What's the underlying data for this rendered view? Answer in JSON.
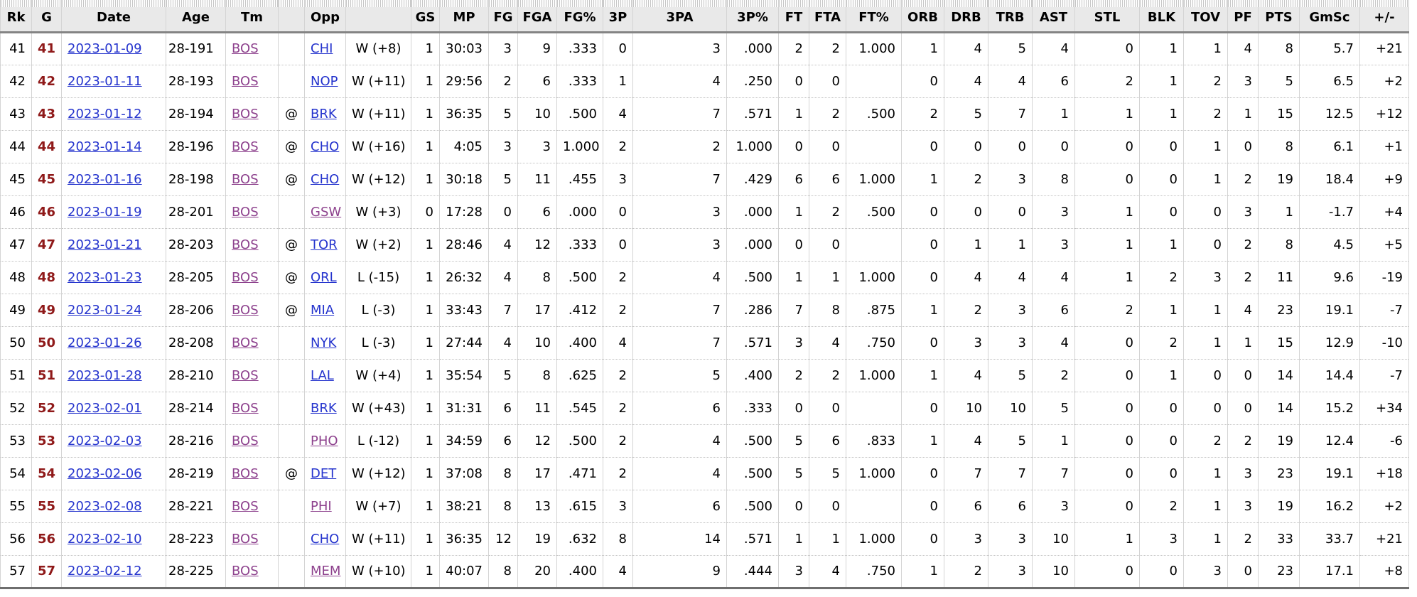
{
  "table": {
    "columns": [
      {
        "key": "rk",
        "label": "Rk"
      },
      {
        "key": "g",
        "label": "G"
      },
      {
        "key": "date",
        "label": "Date"
      },
      {
        "key": "age",
        "label": "Age"
      },
      {
        "key": "tm",
        "label": "Tm"
      },
      {
        "key": "loc",
        "label": ""
      },
      {
        "key": "opp",
        "label": "Opp"
      },
      {
        "key": "result",
        "label": ""
      },
      {
        "key": "gs",
        "label": "GS"
      },
      {
        "key": "mp",
        "label": "MP"
      },
      {
        "key": "fg",
        "label": "FG"
      },
      {
        "key": "fga",
        "label": "FGA"
      },
      {
        "key": "fg_pct",
        "label": "FG%"
      },
      {
        "key": "fg3",
        "label": "3P"
      },
      {
        "key": "fg3a",
        "label": "3PA"
      },
      {
        "key": "fg3_pct",
        "label": "3P%"
      },
      {
        "key": "ft",
        "label": "FT"
      },
      {
        "key": "fta",
        "label": "FTA"
      },
      {
        "key": "ft_pct",
        "label": "FT%"
      },
      {
        "key": "orb",
        "label": "ORB"
      },
      {
        "key": "drb",
        "label": "DRB"
      },
      {
        "key": "trb",
        "label": "TRB"
      },
      {
        "key": "ast",
        "label": "AST"
      },
      {
        "key": "stl",
        "label": "STL"
      },
      {
        "key": "blk",
        "label": "BLK"
      },
      {
        "key": "tov",
        "label": "TOV"
      },
      {
        "key": "pf",
        "label": "PF"
      },
      {
        "key": "pts",
        "label": "PTS"
      },
      {
        "key": "gmsc",
        "label": "GmSc"
      },
      {
        "key": "plus_minus",
        "label": "+/-"
      }
    ],
    "visited_opponents": [
      "GSW",
      "PHO",
      "PHI",
      "MEM"
    ],
    "rows": [
      [
        "41",
        "41",
        "2023-01-09",
        "28-191",
        "BOS",
        "",
        "CHI",
        "W (+8)",
        "1",
        "30:03",
        "3",
        "9",
        ".333",
        "0",
        "3",
        ".000",
        "2",
        "2",
        "1.000",
        "1",
        "4",
        "5",
        "4",
        "0",
        "1",
        "1",
        "4",
        "8",
        "5.7",
        "+21"
      ],
      [
        "42",
        "42",
        "2023-01-11",
        "28-193",
        "BOS",
        "",
        "NOP",
        "W (+11)",
        "1",
        "29:56",
        "2",
        "6",
        ".333",
        "1",
        "4",
        ".250",
        "0",
        "0",
        "",
        "0",
        "4",
        "4",
        "6",
        "2",
        "1",
        "2",
        "3",
        "5",
        "6.5",
        "+2"
      ],
      [
        "43",
        "43",
        "2023-01-12",
        "28-194",
        "BOS",
        "@",
        "BRK",
        "W (+11)",
        "1",
        "36:35",
        "5",
        "10",
        ".500",
        "4",
        "7",
        ".571",
        "1",
        "2",
        ".500",
        "2",
        "5",
        "7",
        "1",
        "1",
        "1",
        "2",
        "1",
        "15",
        "12.5",
        "+12"
      ],
      [
        "44",
        "44",
        "2023-01-14",
        "28-196",
        "BOS",
        "@",
        "CHO",
        "W (+16)",
        "1",
        "4:05",
        "3",
        "3",
        "1.000",
        "2",
        "2",
        "1.000",
        "0",
        "0",
        "",
        "0",
        "0",
        "0",
        "0",
        "0",
        "0",
        "1",
        "0",
        "8",
        "6.1",
        "+1"
      ],
      [
        "45",
        "45",
        "2023-01-16",
        "28-198",
        "BOS",
        "@",
        "CHO",
        "W (+12)",
        "1",
        "30:18",
        "5",
        "11",
        ".455",
        "3",
        "7",
        ".429",
        "6",
        "6",
        "1.000",
        "1",
        "2",
        "3",
        "8",
        "0",
        "0",
        "1",
        "2",
        "19",
        "18.4",
        "+9"
      ],
      [
        "46",
        "46",
        "2023-01-19",
        "28-201",
        "BOS",
        "",
        "GSW",
        "W (+3)",
        "0",
        "17:28",
        "0",
        "6",
        ".000",
        "0",
        "3",
        ".000",
        "1",
        "2",
        ".500",
        "0",
        "0",
        "0",
        "3",
        "1",
        "0",
        "0",
        "3",
        "1",
        "-1.7",
        "+4"
      ],
      [
        "47",
        "47",
        "2023-01-21",
        "28-203",
        "BOS",
        "@",
        "TOR",
        "W (+2)",
        "1",
        "28:46",
        "4",
        "12",
        ".333",
        "0",
        "3",
        ".000",
        "0",
        "0",
        "",
        "0",
        "1",
        "1",
        "3",
        "1",
        "1",
        "0",
        "2",
        "8",
        "4.5",
        "+5"
      ],
      [
        "48",
        "48",
        "2023-01-23",
        "28-205",
        "BOS",
        "@",
        "ORL",
        "L (-15)",
        "1",
        "26:32",
        "4",
        "8",
        ".500",
        "2",
        "4",
        ".500",
        "1",
        "1",
        "1.000",
        "0",
        "4",
        "4",
        "4",
        "1",
        "2",
        "3",
        "2",
        "11",
        "9.6",
        "-19"
      ],
      [
        "49",
        "49",
        "2023-01-24",
        "28-206",
        "BOS",
        "@",
        "MIA",
        "L (-3)",
        "1",
        "33:43",
        "7",
        "17",
        ".412",
        "2",
        "7",
        ".286",
        "7",
        "8",
        ".875",
        "1",
        "2",
        "3",
        "6",
        "2",
        "1",
        "1",
        "4",
        "23",
        "19.1",
        "-7"
      ],
      [
        "50",
        "50",
        "2023-01-26",
        "28-208",
        "BOS",
        "",
        "NYK",
        "L (-3)",
        "1",
        "27:44",
        "4",
        "10",
        ".400",
        "4",
        "7",
        ".571",
        "3",
        "4",
        ".750",
        "0",
        "3",
        "3",
        "4",
        "0",
        "2",
        "1",
        "1",
        "15",
        "12.9",
        "-10"
      ],
      [
        "51",
        "51",
        "2023-01-28",
        "28-210",
        "BOS",
        "",
        "LAL",
        "W (+4)",
        "1",
        "35:54",
        "5",
        "8",
        ".625",
        "2",
        "5",
        ".400",
        "2",
        "2",
        "1.000",
        "1",
        "4",
        "5",
        "2",
        "0",
        "1",
        "0",
        "0",
        "14",
        "14.4",
        "-7"
      ],
      [
        "52",
        "52",
        "2023-02-01",
        "28-214",
        "BOS",
        "",
        "BRK",
        "W (+43)",
        "1",
        "31:31",
        "6",
        "11",
        ".545",
        "2",
        "6",
        ".333",
        "0",
        "0",
        "",
        "0",
        "10",
        "10",
        "5",
        "0",
        "0",
        "0",
        "0",
        "14",
        "15.2",
        "+34"
      ],
      [
        "53",
        "53",
        "2023-02-03",
        "28-216",
        "BOS",
        "",
        "PHO",
        "L (-12)",
        "1",
        "34:59",
        "6",
        "12",
        ".500",
        "2",
        "4",
        ".500",
        "5",
        "6",
        ".833",
        "1",
        "4",
        "5",
        "1",
        "0",
        "0",
        "2",
        "2",
        "19",
        "12.4",
        "-6"
      ],
      [
        "54",
        "54",
        "2023-02-06",
        "28-219",
        "BOS",
        "@",
        "DET",
        "W (+12)",
        "1",
        "37:08",
        "8",
        "17",
        ".471",
        "2",
        "4",
        ".500",
        "5",
        "5",
        "1.000",
        "0",
        "7",
        "7",
        "7",
        "0",
        "0",
        "1",
        "3",
        "23",
        "19.1",
        "+18"
      ],
      [
        "55",
        "55",
        "2023-02-08",
        "28-221",
        "BOS",
        "",
        "PHI",
        "W (+7)",
        "1",
        "38:21",
        "8",
        "13",
        ".615",
        "3",
        "6",
        ".500",
        "0",
        "0",
        "",
        "0",
        "6",
        "6",
        "3",
        "0",
        "2",
        "1",
        "3",
        "19",
        "16.2",
        "+2"
      ],
      [
        "56",
        "56",
        "2023-02-10",
        "28-223",
        "BOS",
        "",
        "CHO",
        "W (+11)",
        "1",
        "36:35",
        "12",
        "19",
        ".632",
        "8",
        "14",
        ".571",
        "1",
        "1",
        "1.000",
        "0",
        "3",
        "3",
        "10",
        "1",
        "3",
        "1",
        "2",
        "33",
        "33.7",
        "+21"
      ],
      [
        "57",
        "57",
        "2023-02-12",
        "28-225",
        "BOS",
        "",
        "MEM",
        "W (+10)",
        "1",
        "40:07",
        "8",
        "20",
        ".400",
        "4",
        "9",
        ".444",
        "3",
        "4",
        ".750",
        "1",
        "2",
        "3",
        "10",
        "0",
        "0",
        "3",
        "0",
        "23",
        "17.1",
        "+8"
      ]
    ]
  },
  "colors": {
    "link_blue": "#2433cd",
    "link_visited_purple": "#8d418d",
    "game_number_red": "#8f1919",
    "header_bg": "#e9e9e9",
    "cell_border_gray": "#d4d4d4"
  }
}
